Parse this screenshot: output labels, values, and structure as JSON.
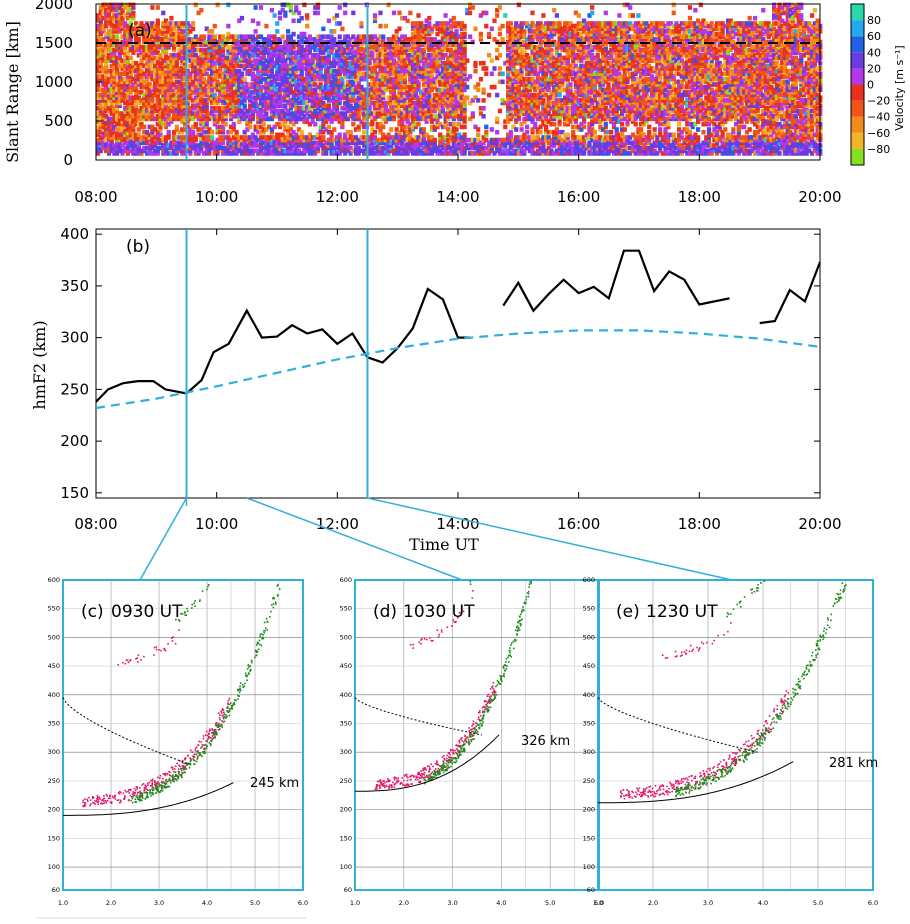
{
  "chart_data": [
    {
      "id": "a",
      "type": "heatmap",
      "panel_label": "(a)",
      "ylabel": "Slant Range [km]",
      "x_ticks": [
        "08:00",
        "10:00",
        "12:00",
        "14:00",
        "16:00",
        "18:00",
        "20:00"
      ],
      "y_ticks": [
        "0",
        "500",
        "1000",
        "1500",
        "2000"
      ],
      "xlim_hours": [
        8,
        20
      ],
      "ylim": [
        0,
        2000
      ],
      "reference_range_km": 1500,
      "markers_ut_hours": [
        9.5,
        12.5
      ],
      "colorbar": {
        "title": "Velocity [m s⁻¹]",
        "tick_labels": [
          "80",
          "60",
          "40",
          "20",
          "0",
          "−20",
          "−40",
          "−60",
          "−80"
        ],
        "colors": [
          "#27d8a8",
          "#25a8f0",
          "#2060e8",
          "#6a3ce0",
          "#b238e8",
          "#e8301e",
          "#f25418",
          "#f28a1c",
          "#f2b428",
          "#86e020"
        ]
      }
    },
    {
      "id": "b",
      "type": "line",
      "panel_label": "(b)",
      "xlabel": "Time UT",
      "ylabel": "hmF2 (km)",
      "x_ticks": [
        "08:00",
        "10:00",
        "12:00",
        "14:00",
        "16:00",
        "18:00",
        "20:00"
      ],
      "y_ticks": [
        "150",
        "200",
        "250",
        "300",
        "350",
        "400"
      ],
      "xlim_hours": [
        8,
        20
      ],
      "ylim": [
        145,
        405
      ],
      "markers_ut_hours": [
        9.5,
        12.5
      ],
      "series": [
        {
          "name": "",
          "style": "solid",
          "color": "#000000",
          "segments": [
            [
              [
                8.0,
                238
              ],
              [
                8.2,
                250
              ],
              [
                8.45,
                256
              ],
              [
                8.7,
                258
              ],
              [
                8.95,
                258
              ],
              [
                9.15,
                250
              ],
              [
                9.5,
                246
              ],
              [
                9.75,
                259
              ],
              [
                9.95,
                286
              ],
              [
                10.2,
                294
              ],
              [
                10.5,
                326
              ],
              [
                10.75,
                300
              ],
              [
                11.0,
                301
              ],
              [
                11.25,
                312
              ],
              [
                11.5,
                304
              ],
              [
                11.75,
                308
              ],
              [
                12.0,
                294
              ],
              [
                12.25,
                304
              ],
              [
                12.5,
                281
              ],
              [
                12.75,
                276
              ],
              [
                13.0,
                290
              ],
              [
                13.25,
                309
              ],
              [
                13.5,
                347
              ],
              [
                13.75,
                337
              ],
              [
                14.0,
                300
              ],
              [
                14.2,
                300
              ]
            ],
            [
              [
                14.75,
                331
              ],
              [
                15.0,
                353
              ],
              [
                15.25,
                326
              ],
              [
                15.5,
                342
              ],
              [
                15.75,
                356
              ],
              [
                16.0,
                343
              ],
              [
                16.25,
                349
              ],
              [
                16.5,
                338
              ],
              [
                16.75,
                384
              ],
              [
                17.0,
                384
              ],
              [
                17.25,
                345
              ],
              [
                17.5,
                364
              ],
              [
                17.75,
                356
              ],
              [
                18.0,
                332
              ],
              [
                18.5,
                338
              ]
            ],
            [
              [
                19.0,
                314
              ],
              [
                19.25,
                316
              ],
              [
                19.5,
                346
              ],
              [
                19.75,
                335
              ],
              [
                20.0,
                373
              ]
            ]
          ]
        },
        {
          "name": "",
          "style": "dashed",
          "color": "#30b0d8",
          "segments": [
            [
              [
                8.0,
                232
              ],
              [
                9.0,
                241
              ],
              [
                10.0,
                253
              ],
              [
                11.0,
                266
              ],
              [
                12.0,
                279
              ],
              [
                13.0,
                290
              ],
              [
                14.0,
                299
              ],
              [
                15.0,
                304
              ],
              [
                16.0,
                307
              ],
              [
                17.0,
                307
              ],
              [
                18.0,
                304
              ],
              [
                19.0,
                299
              ],
              [
                20.0,
                291
              ]
            ]
          ]
        }
      ]
    },
    {
      "id": "c",
      "type": "scatter",
      "panel_label": "(c)",
      "title": "0930  UT",
      "hmf2_annotation": "245 km",
      "x_ticks": [
        "1.0",
        "2.0",
        "3.0",
        "4.0",
        "5.0",
        "6.0"
      ],
      "y_ticks": [
        "60",
        "100",
        "150",
        "200",
        "250",
        "300",
        "350",
        "400",
        "450",
        "500",
        "550",
        "600"
      ],
      "xlim": [
        1.0,
        6.0
      ],
      "ylim": [
        60,
        600
      ]
    },
    {
      "id": "d",
      "type": "scatter",
      "panel_label": "(d)",
      "title": "1030 UT",
      "hmf2_annotation": "326 km",
      "x_ticks": [
        "1.0",
        "2.0",
        "3.0",
        "4.0",
        "5.0",
        "6.0"
      ],
      "y_ticks": [
        "60",
        "100",
        "150",
        "200",
        "250",
        "300",
        "350",
        "400",
        "450",
        "500",
        "550",
        "600"
      ],
      "xlim": [
        1.0,
        6.0
      ],
      "ylim": [
        60,
        600
      ]
    },
    {
      "id": "e",
      "type": "scatter",
      "panel_label": "(e)",
      "title": "1230  UT",
      "hmf2_annotation": "281 km",
      "x_ticks": [
        "1.0",
        "2.0",
        "3.0",
        "4.0",
        "5.0",
        "6.0"
      ],
      "y_ticks": [
        "60",
        "100",
        "150",
        "200",
        "250",
        "300",
        "350",
        "400",
        "450",
        "500",
        "550",
        "600"
      ],
      "xlim": [
        1.0,
        6.0
      ],
      "ylim": [
        60,
        600
      ]
    }
  ]
}
